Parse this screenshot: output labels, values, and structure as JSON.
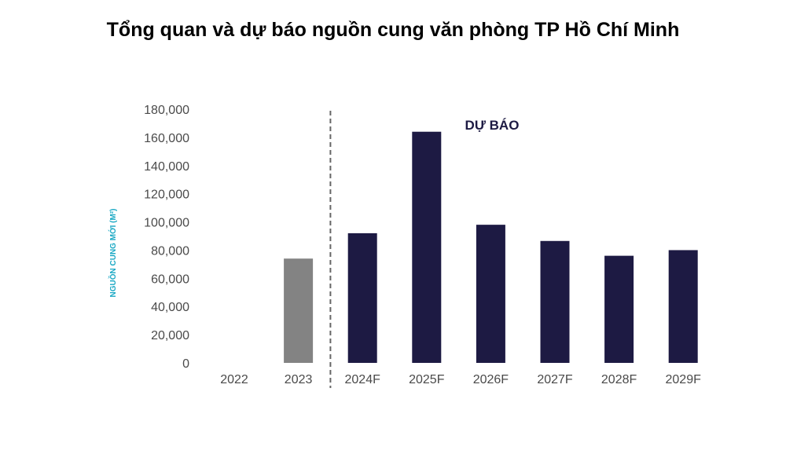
{
  "chart_data": {
    "type": "bar",
    "title": "Tổng quan và dự báo nguồn cung văn phòng TP Hồ Chí Minh",
    "ylabel": "NGUỒN CUNG MỚI (M²)",
    "xlabel": "",
    "categories": [
      "2022",
      "2023",
      "2024F",
      "2025F",
      "2026F",
      "2027F",
      "2028F",
      "2029F"
    ],
    "values": [
      0,
      74000,
      92000,
      164000,
      98000,
      86500,
      76000,
      80000
    ],
    "ylim": [
      0,
      180000
    ],
    "yticks": [
      0,
      20000,
      40000,
      60000,
      80000,
      100000,
      120000,
      140000,
      160000,
      180000
    ],
    "ytick_labels": [
      "0",
      "20,000",
      "40,000",
      "60,000",
      "80,000",
      "100,000",
      "120,000",
      "140,000",
      "160,000",
      "180,000"
    ],
    "forecast_start_index": 2,
    "annotation": "DỰ BÁO",
    "grid": false,
    "legend": "none",
    "colors": {
      "actual": "#838383",
      "forecast": "#1d1a43",
      "divider": "#666666"
    }
  }
}
